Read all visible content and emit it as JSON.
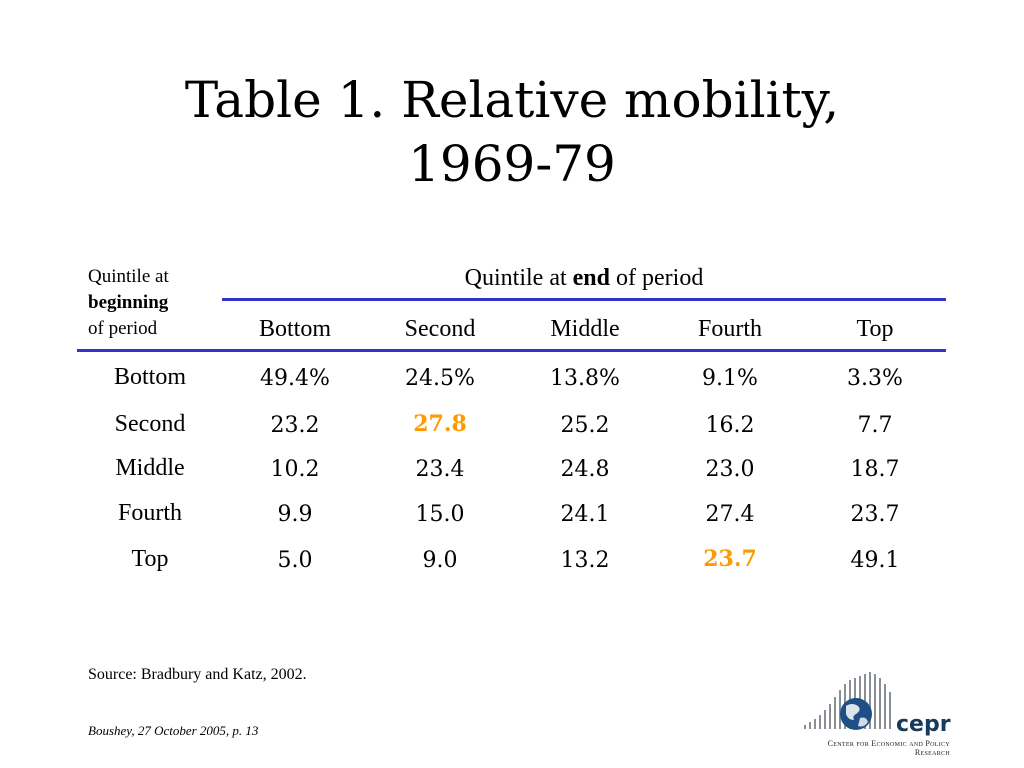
{
  "title": {
    "line1": "Table 1. Relative mobility,",
    "line2": "1969-79"
  },
  "corner": {
    "line1": "Quintile at",
    "line2": "beginning",
    "line3": "of period"
  },
  "column_header": {
    "pre": "Quintile at ",
    "bold": "end",
    "post": " of period"
  },
  "columns": [
    "Bottom",
    "Second",
    "Middle",
    "Fourth",
    "Top"
  ],
  "rows": [
    {
      "label": "Bottom",
      "values": [
        "49.4%",
        "24.5%",
        "13.8%",
        "9.1%",
        "3.3%"
      ]
    },
    {
      "label": "Second",
      "values": [
        "23.2",
        "27.8",
        "25.2",
        "16.2",
        "7.7"
      ]
    },
    {
      "label": "Middle",
      "values": [
        "10.2",
        "23.4",
        "24.8",
        "23.0",
        "18.7"
      ]
    },
    {
      "label": "Fourth",
      "values": [
        "9.9",
        "15.0",
        "24.1",
        "27.4",
        "23.7"
      ]
    },
    {
      "label": "Top",
      "values": [
        "5.0",
        "9.0",
        "13.2",
        "23.7",
        "49.1"
      ]
    }
  ],
  "highlight_color": "#ff9900",
  "rule_color": "#3333cc",
  "source": "Source: Bradbury and Katz, 2002.",
  "footer": "Boushey, 27 October 2005, p. 13",
  "logo": {
    "word": "cepr",
    "subtitle": "Center for Economic and Policy Research"
  }
}
